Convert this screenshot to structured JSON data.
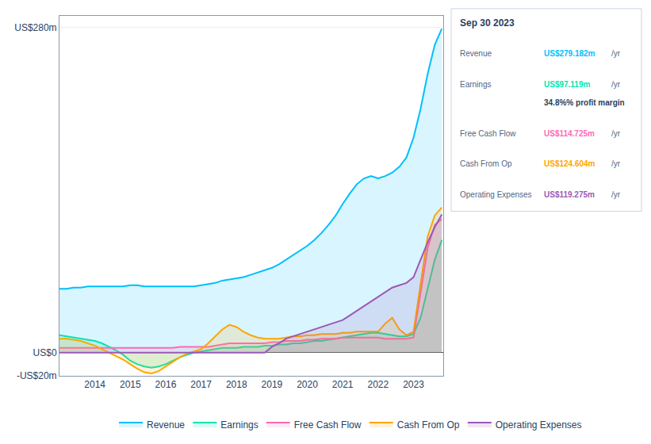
{
  "chart_data": {
    "type": "line",
    "x": [
      2013.0,
      2013.2,
      2013.4,
      2013.6,
      2013.8,
      2014.0,
      2014.2,
      2014.4,
      2014.6,
      2014.8,
      2015.0,
      2015.2,
      2015.4,
      2015.6,
      2015.8,
      2016.0,
      2016.2,
      2016.4,
      2016.6,
      2016.8,
      2017.0,
      2017.2,
      2017.4,
      2017.6,
      2017.8,
      2018.0,
      2018.2,
      2018.4,
      2018.6,
      2018.8,
      2019.0,
      2019.2,
      2019.4,
      2019.6,
      2019.8,
      2020.0,
      2020.2,
      2020.4,
      2020.6,
      2020.8,
      2021.0,
      2021.2,
      2021.4,
      2021.6,
      2021.8,
      2022.0,
      2022.2,
      2022.4,
      2022.6,
      2022.8,
      2023.0,
      2023.2,
      2023.4,
      2023.6,
      2023.8
    ],
    "series": [
      {
        "name": "Revenue",
        "color": "#00bfff",
        "values": [
          55,
          55,
          56,
          56,
          57,
          57,
          57,
          57,
          57,
          57,
          58,
          58,
          57,
          57,
          57,
          57,
          57,
          57,
          57,
          57,
          58,
          59,
          60,
          62,
          63,
          64,
          65,
          67,
          69,
          71,
          73,
          76,
          80,
          84,
          88,
          92,
          97,
          103,
          110,
          118,
          128,
          137,
          145,
          150,
          152,
          150,
          152,
          155,
          160,
          168,
          185,
          210,
          240,
          265,
          279
        ]
      },
      {
        "name": "Earnings",
        "color": "#00e5b0",
        "values": [
          15,
          14,
          13,
          12,
          11,
          10,
          8,
          5,
          2,
          -2,
          -7,
          -10,
          -12,
          -13,
          -12,
          -10,
          -7,
          -4,
          -2,
          0,
          1,
          2,
          3,
          4,
          4,
          4,
          5,
          5,
          5,
          6,
          6,
          7,
          7,
          8,
          8,
          9,
          10,
          10,
          11,
          12,
          13,
          14,
          15,
          16,
          17,
          17,
          16,
          15,
          14,
          14,
          16,
          30,
          55,
          80,
          97
        ]
      },
      {
        "name": "Free Cash Flow",
        "color": "#ff69b4",
        "values": [
          4,
          4,
          4,
          4,
          4,
          4,
          4,
          4,
          4,
          4,
          4,
          4,
          4,
          4,
          4,
          4,
          4,
          5,
          5,
          5,
          5,
          5,
          6,
          7,
          8,
          8,
          8,
          8,
          8,
          8,
          9,
          9,
          10,
          10,
          10,
          11,
          11,
          12,
          12,
          12,
          13,
          13,
          13,
          13,
          13,
          13,
          12,
          12,
          12,
          12,
          13,
          50,
          90,
          110,
          115
        ]
      },
      {
        "name": "Cash From Op",
        "color": "#ffa500",
        "values": [
          12,
          12,
          11,
          10,
          8,
          6,
          3,
          0,
          -3,
          -6,
          -10,
          -14,
          -17,
          -18,
          -16,
          -12,
          -8,
          -4,
          -1,
          1,
          3,
          8,
          14,
          20,
          24,
          22,
          18,
          15,
          13,
          12,
          12,
          12,
          13,
          14,
          14,
          15,
          15,
          16,
          16,
          16,
          17,
          17,
          18,
          18,
          18,
          18,
          25,
          30,
          20,
          15,
          18,
          60,
          100,
          118,
          125
        ]
      },
      {
        "name": "Operating Expenses",
        "color": "#9b59b6",
        "values": [
          0,
          0,
          0,
          0,
          0,
          0,
          0,
          0,
          0,
          0,
          0,
          0,
          0,
          0,
          0,
          0,
          0,
          0,
          0,
          0,
          0,
          0,
          0,
          0,
          0,
          0,
          0,
          0,
          0,
          0,
          5,
          8,
          12,
          14,
          16,
          18,
          20,
          22,
          24,
          26,
          28,
          32,
          36,
          40,
          44,
          48,
          52,
          56,
          58,
          60,
          65,
          80,
          95,
          108,
          119
        ]
      }
    ],
    "xlim": [
      2013.0,
      2023.85
    ],
    "xticks": [
      2014,
      2015,
      2016,
      2017,
      2018,
      2019,
      2020,
      2021,
      2022,
      2023
    ],
    "ylim": [
      -20,
      290
    ],
    "yticks": [
      {
        "value": -20,
        "label": "-US$20m"
      },
      {
        "value": 0,
        "label": "US$0"
      },
      {
        "value": 280,
        "label": "US$280m"
      }
    ],
    "grid": true,
    "legend": "bottom",
    "annotations": [
      [
        "Sep 30 2023"
      ],
      [
        "Revenue",
        "US$279.182m",
        "/yr"
      ],
      [
        "Earnings",
        "US$97.119m",
        "/yr",
        "34.8%% profit margin"
      ],
      [
        "Free Cash Flow",
        "US$114.725m",
        "/yr"
      ],
      [
        "Cash From Op",
        "US$124.604m",
        "/yr"
      ],
      [
        "Operating Expenses",
        "US$119.275m",
        "/yr"
      ]
    ]
  }
}
